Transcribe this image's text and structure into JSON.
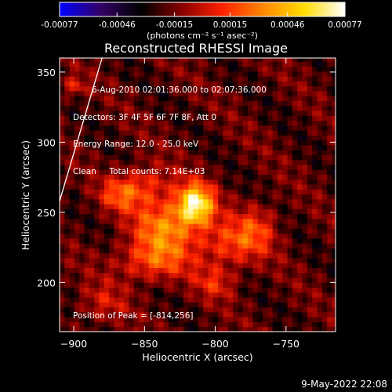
{
  "colorbar": {
    "tick_labels": [
      "-0.00077",
      "-0.00046",
      "-0.00015",
      "0.00015",
      "0.00046",
      "0.00077"
    ],
    "tick_values": [
      -0.00077,
      -0.00046,
      -0.00015,
      0.00015,
      0.00046,
      0.00077
    ],
    "range": [
      -0.00077,
      0.00077
    ],
    "units_label": "(photons cm⁻² s⁻¹ asec⁻²)",
    "colors": [
      "#0000ff",
      "#330066",
      "#000000",
      "#880000",
      "#ff2200",
      "#ff8800",
      "#ffdd00",
      "#ffffff"
    ]
  },
  "chart_data": {
    "type": "heatmap",
    "title": "Reconstructed RHESSI Image",
    "xlabel": "Heliocentric X (arcsec)",
    "ylabel": "Heliocentric Y (arcsec)",
    "xlim": [
      -910,
      -715
    ],
    "ylim": [
      165,
      360
    ],
    "x_ticks": [
      -900,
      -850,
      -800,
      -750
    ],
    "x_tick_labels": [
      "−900",
      "−850",
      "−800",
      "−750"
    ],
    "y_ticks": [
      200,
      250,
      300,
      350
    ],
    "y_tick_labels": [
      "200",
      "250",
      "300",
      "350"
    ],
    "annotations": [
      "6-Aug-2010 02:01:36.000 to 02:07:36.000",
      "Detectors: 3F 4F 5F 6F 7F 8F, Att 0",
      "Energy Range: 12.0 - 25.0 keV",
      "Clean     Total counts: 7.14E+03"
    ],
    "peak_label": "Position of Peak = [-814,256]",
    "peak": [
      -814,
      256
    ],
    "limb_curve": [
      [
        -910,
        258
      ],
      [
        -880,
        360
      ]
    ],
    "background_value": -0.0002,
    "sources": [
      {
        "x": -814,
        "y": 256,
        "amp": 0.00085,
        "sx": 9,
        "sy": 10
      },
      {
        "x": -835,
        "y": 240,
        "amp": 0.0005,
        "sx": 16,
        "sy": 14
      },
      {
        "x": -845,
        "y": 215,
        "amp": 0.00035,
        "sx": 18,
        "sy": 10
      },
      {
        "x": -790,
        "y": 228,
        "amp": 0.00035,
        "sx": 16,
        "sy": 12
      },
      {
        "x": -868,
        "y": 262,
        "amp": 0.0003,
        "sx": 10,
        "sy": 8
      },
      {
        "x": -800,
        "y": 200,
        "amp": 0.00025,
        "sx": 10,
        "sy": 8
      },
      {
        "x": -770,
        "y": 240,
        "amp": 0.00025,
        "sx": 10,
        "sy": 12
      },
      {
        "x": -850,
        "y": 270,
        "amp": 0.0003,
        "sx": 14,
        "sy": 10
      },
      {
        "x": -880,
        "y": 185,
        "amp": 0.0002,
        "sx": 12,
        "sy": 10
      },
      {
        "x": -900,
        "y": 340,
        "amp": 0.00025,
        "sx": 6,
        "sy": 5
      }
    ]
  },
  "footer": {
    "timestamp": "9-May-2022 22:08"
  }
}
